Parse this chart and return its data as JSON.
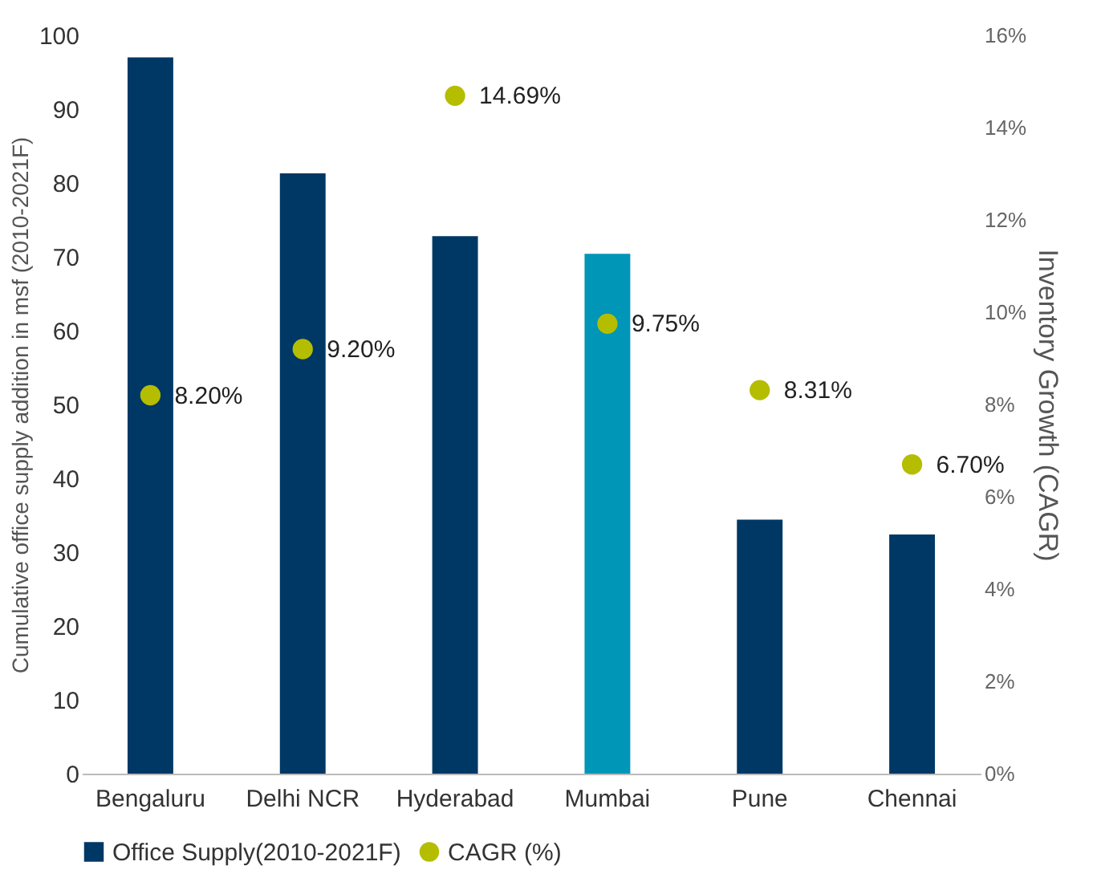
{
  "chart_data": {
    "type": "bar",
    "ylabel": "Cumulative office supply addition in msf (2010-2021F)",
    "y2label": "Inventory Growth (CAGR)",
    "categories": [
      "Bengaluru",
      "Delhi NCR",
      "Hyderabad",
      "Mumbai",
      "Pune",
      "Chennai"
    ],
    "series": [
      {
        "name": "Office Supply(2010-2021F)",
        "color": "#003865",
        "colors": [
          "#003865",
          "#003865",
          "#003865",
          "#0096b8",
          "#003865",
          "#003865"
        ],
        "values": [
          97,
          81.3,
          72.8,
          70.4,
          34.4,
          32.4
        ]
      },
      {
        "name": "CAGR (%)",
        "type": "scatter",
        "axis": "y2",
        "color": "#b5bd00",
        "values": [
          8.2,
          9.2,
          14.69,
          9.75,
          8.31,
          6.7
        ],
        "value_labels": [
          "8.20%",
          "9.20%",
          "14.69%",
          "9.75%",
          "8.31%",
          "6.70%"
        ]
      }
    ],
    "ylim": [
      0,
      100
    ],
    "yticks": [
      0,
      10,
      20,
      30,
      40,
      50,
      60,
      70,
      80,
      90,
      100
    ],
    "y2lim": [
      0,
      16
    ],
    "y2ticks": [
      {
        "value": 0,
        "label": "0%"
      },
      {
        "value": 2,
        "label": "2%"
      },
      {
        "value": 4,
        "label": "4%"
      },
      {
        "value": 6,
        "label": "6%"
      },
      {
        "value": 8,
        "label": "8%"
      },
      {
        "value": 10,
        "label": "10%"
      },
      {
        "value": 12,
        "label": "12%"
      },
      {
        "value": 14,
        "label": "14%"
      },
      {
        "value": 16,
        "label": "16%"
      }
    ],
    "grid": false,
    "legend": "bottom",
    "marker": "circle"
  }
}
